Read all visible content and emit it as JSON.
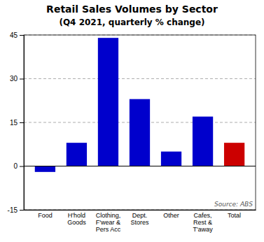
{
  "chart_data": {
    "type": "bar",
    "title": "Retail Sales Volumes by Sector",
    "subtitle": "(Q4 2021, quarterly % change)",
    "categories": [
      "Food",
      "H'hold\nGoods",
      "Clothing,\nF'wear &\nPers Acc",
      "Dept.\nStores",
      "Other",
      "Cafes,\nRest &\nT'away",
      "Total"
    ],
    "values": [
      -2,
      8,
      44,
      23,
      5,
      17,
      8
    ],
    "colors": [
      "#0000cc",
      "#0000cc",
      "#0000cc",
      "#0000cc",
      "#0000cc",
      "#0000cc",
      "#cc0000"
    ],
    "ylim": [
      -15,
      45
    ],
    "yticks": [
      -15,
      0,
      15,
      30,
      45
    ],
    "grid": true,
    "annotations": [
      "Source: ABS"
    ]
  }
}
